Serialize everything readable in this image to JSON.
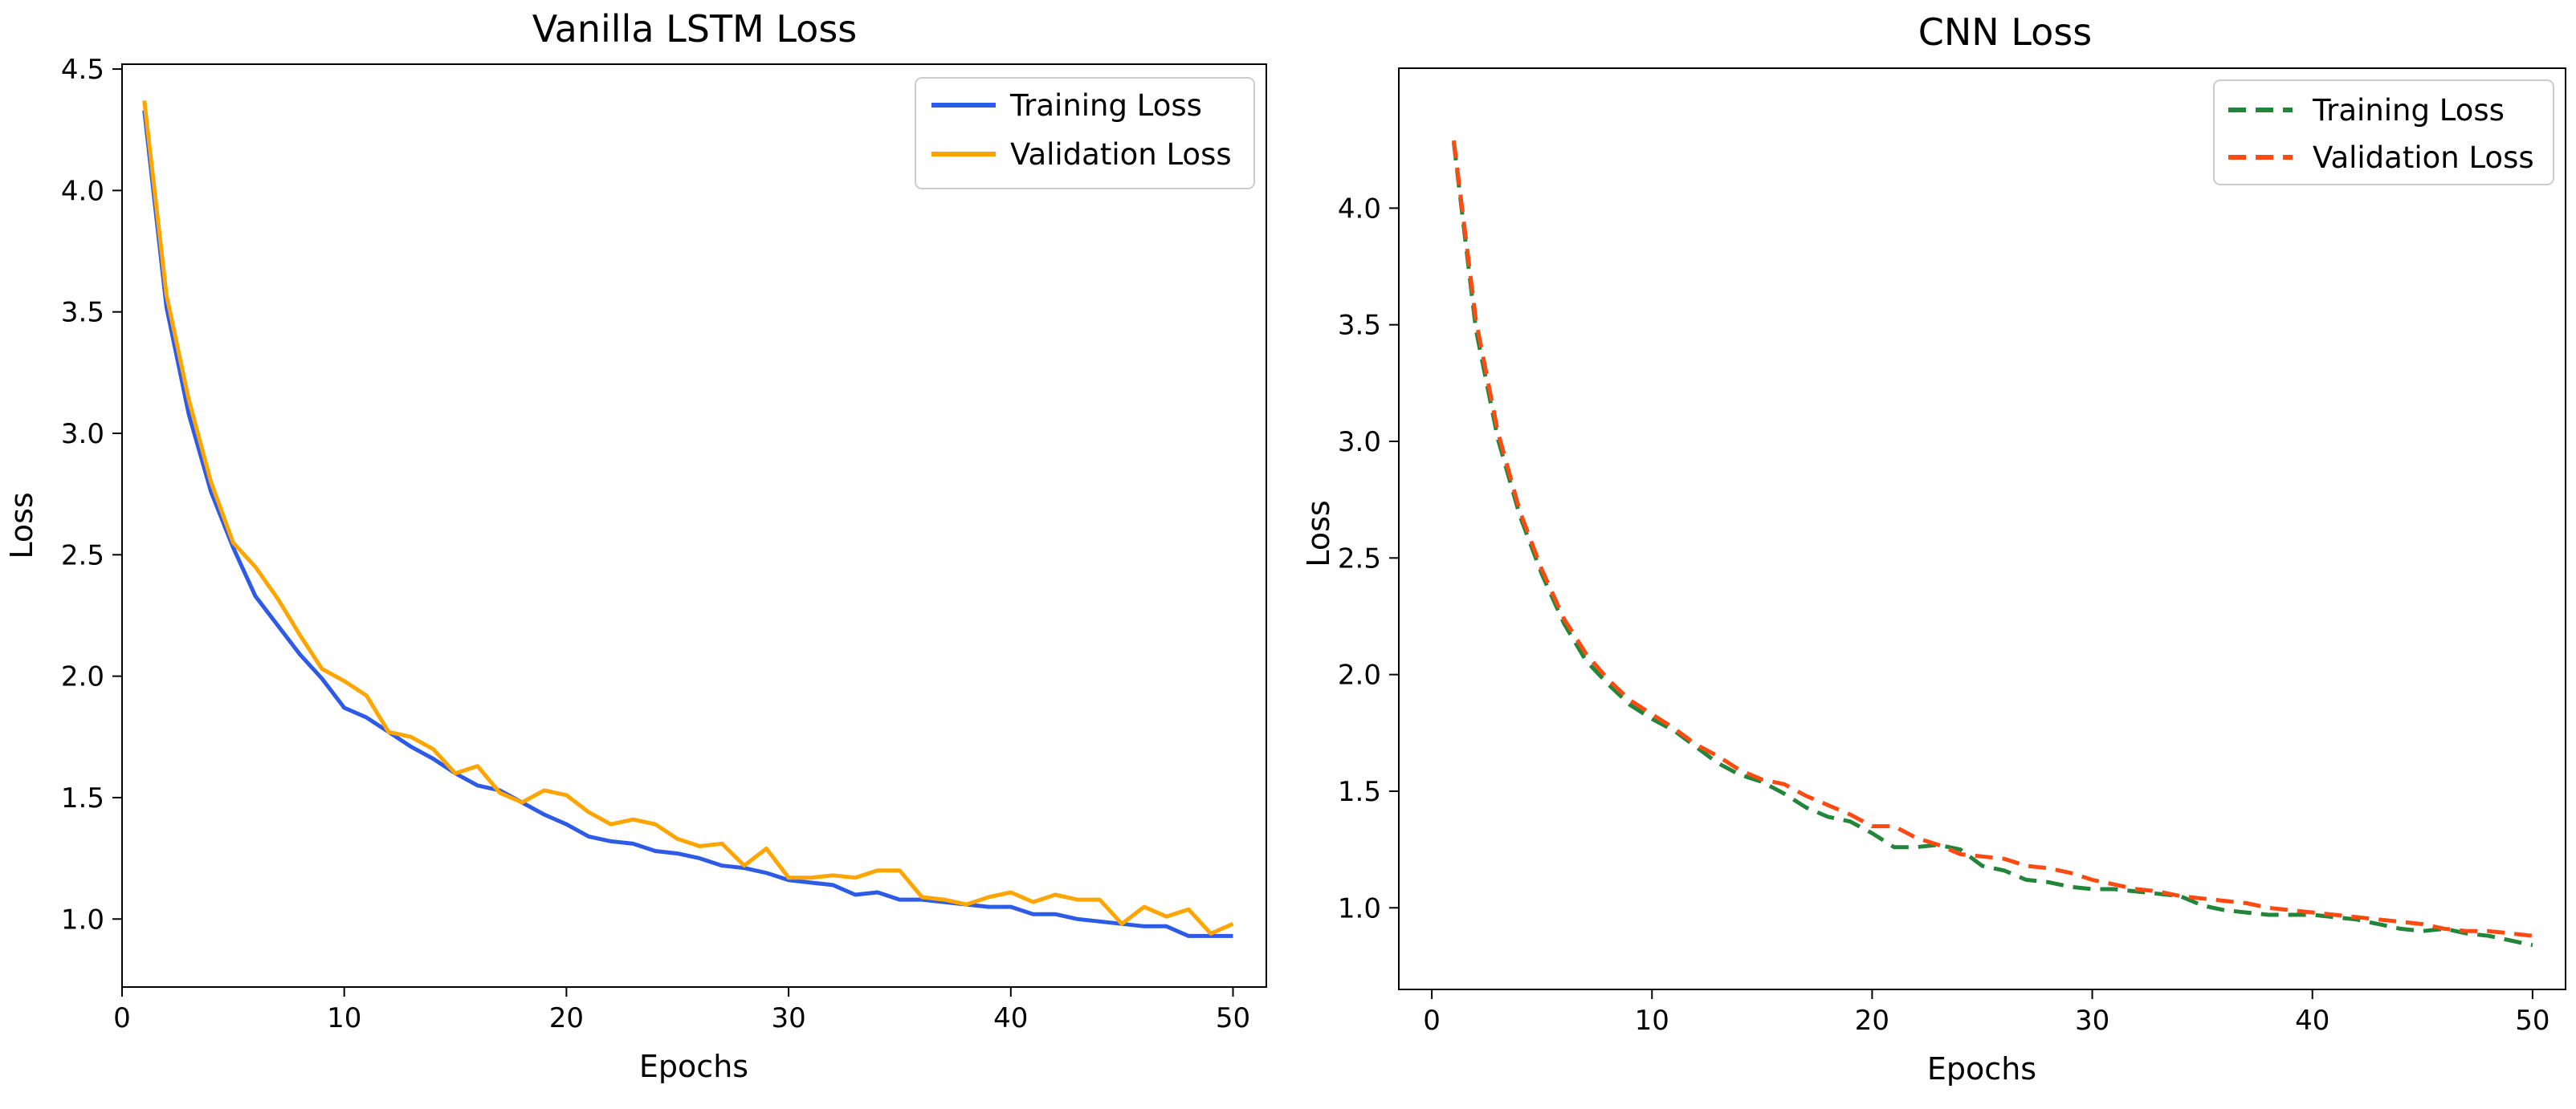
{
  "chart_data": [
    {
      "type": "line",
      "title": "Vanilla LSTM Loss",
      "xlabel": "Epochs",
      "ylabel": "Loss",
      "xlim": [
        0,
        51.5
      ],
      "ylim": [
        0.72,
        4.52
      ],
      "xticks": [
        "0",
        "10",
        "20",
        "30",
        "40",
        "50"
      ],
      "yticks": [
        "1.0",
        "1.5",
        "2.0",
        "2.5",
        "3.0",
        "3.5",
        "4.0",
        "4.5"
      ],
      "legend_position": "top-right",
      "x": [
        1,
        2,
        3,
        4,
        5,
        6,
        7,
        8,
        9,
        10,
        11,
        12,
        13,
        14,
        15,
        16,
        17,
        18,
        19,
        20,
        21,
        22,
        23,
        24,
        25,
        26,
        27,
        28,
        29,
        30,
        31,
        32,
        33,
        34,
        35,
        36,
        37,
        38,
        39,
        40,
        41,
        42,
        43,
        44,
        45,
        46,
        47,
        48,
        49,
        50
      ],
      "series": [
        {
          "name": "Training Loss",
          "color": "#2e5be6",
          "style": "solid",
          "values": [
            4.33,
            3.52,
            3.08,
            2.76,
            2.53,
            2.33,
            2.21,
            2.09,
            1.99,
            1.87,
            1.83,
            1.77,
            1.71,
            1.66,
            1.6,
            1.55,
            1.53,
            1.48,
            1.43,
            1.39,
            1.34,
            1.32,
            1.31,
            1.28,
            1.27,
            1.25,
            1.22,
            1.21,
            1.19,
            1.16,
            1.15,
            1.14,
            1.1,
            1.11,
            1.08,
            1.08,
            1.07,
            1.06,
            1.05,
            1.05,
            1.02,
            1.02,
            1.0,
            0.99,
            0.98,
            0.97,
            0.97,
            0.93,
            0.93,
            0.93
          ]
        },
        {
          "name": "Validation Loss",
          "color": "#ffa500",
          "style": "solid",
          "values": [
            4.37,
            3.57,
            3.14,
            2.8,
            2.55,
            2.45,
            2.32,
            2.17,
            2.03,
            1.98,
            1.92,
            1.77,
            1.75,
            1.7,
            1.6,
            1.63,
            1.52,
            1.48,
            1.53,
            1.51,
            1.44,
            1.39,
            1.41,
            1.39,
            1.33,
            1.3,
            1.31,
            1.22,
            1.29,
            1.17,
            1.17,
            1.18,
            1.17,
            1.2,
            1.2,
            1.09,
            1.08,
            1.06,
            1.09,
            1.11,
            1.07,
            1.1,
            1.08,
            1.08,
            0.98,
            1.05,
            1.01,
            1.04,
            0.94,
            0.98
          ]
        }
      ]
    },
    {
      "type": "line",
      "title": "CNN Loss",
      "xlabel": "Epochs",
      "ylabel": "Loss",
      "xlim": [
        -1.5,
        51.5
      ],
      "ylim": [
        0.65,
        4.6
      ],
      "xticks": [
        "0",
        "10",
        "20",
        "30",
        "40",
        "50"
      ],
      "yticks": [
        "1.0",
        "1.5",
        "2.0",
        "2.5",
        "3.0",
        "3.5",
        "4.0"
      ],
      "legend_position": "top-right",
      "x": [
        1,
        2,
        3,
        4,
        5,
        6,
        7,
        8,
        9,
        10,
        11,
        12,
        13,
        14,
        15,
        16,
        17,
        18,
        19,
        20,
        21,
        22,
        23,
        24,
        25,
        26,
        27,
        28,
        29,
        30,
        31,
        32,
        33,
        34,
        35,
        36,
        37,
        38,
        39,
        40,
        41,
        42,
        43,
        44,
        45,
        46,
        47,
        48,
        49,
        50
      ],
      "series": [
        {
          "name": "Training Loss",
          "color": "#22863a",
          "style": "dashed",
          "values": [
            4.28,
            3.48,
            3.01,
            2.68,
            2.43,
            2.22,
            2.06,
            1.96,
            1.87,
            1.81,
            1.76,
            1.69,
            1.62,
            1.57,
            1.54,
            1.49,
            1.43,
            1.39,
            1.37,
            1.32,
            1.26,
            1.26,
            1.27,
            1.25,
            1.18,
            1.16,
            1.12,
            1.11,
            1.09,
            1.08,
            1.08,
            1.07,
            1.06,
            1.05,
            1.01,
            0.99,
            0.98,
            0.97,
            0.97,
            0.97,
            0.96,
            0.95,
            0.93,
            0.91,
            0.9,
            0.91,
            0.89,
            0.88,
            0.86,
            0.84
          ]
        },
        {
          "name": "Validation Loss",
          "color": "#ff4a12",
          "style": "dashed",
          "values": [
            4.29,
            3.52,
            3.04,
            2.7,
            2.45,
            2.24,
            2.09,
            1.98,
            1.89,
            1.83,
            1.77,
            1.7,
            1.65,
            1.59,
            1.55,
            1.53,
            1.48,
            1.44,
            1.4,
            1.35,
            1.35,
            1.3,
            1.27,
            1.23,
            1.22,
            1.21,
            1.18,
            1.17,
            1.15,
            1.12,
            1.1,
            1.08,
            1.07,
            1.05,
            1.04,
            1.03,
            1.02,
            1.0,
            0.99,
            0.98,
            0.97,
            0.96,
            0.95,
            0.94,
            0.93,
            0.91,
            0.9,
            0.9,
            0.89,
            0.88
          ]
        }
      ]
    }
  ]
}
